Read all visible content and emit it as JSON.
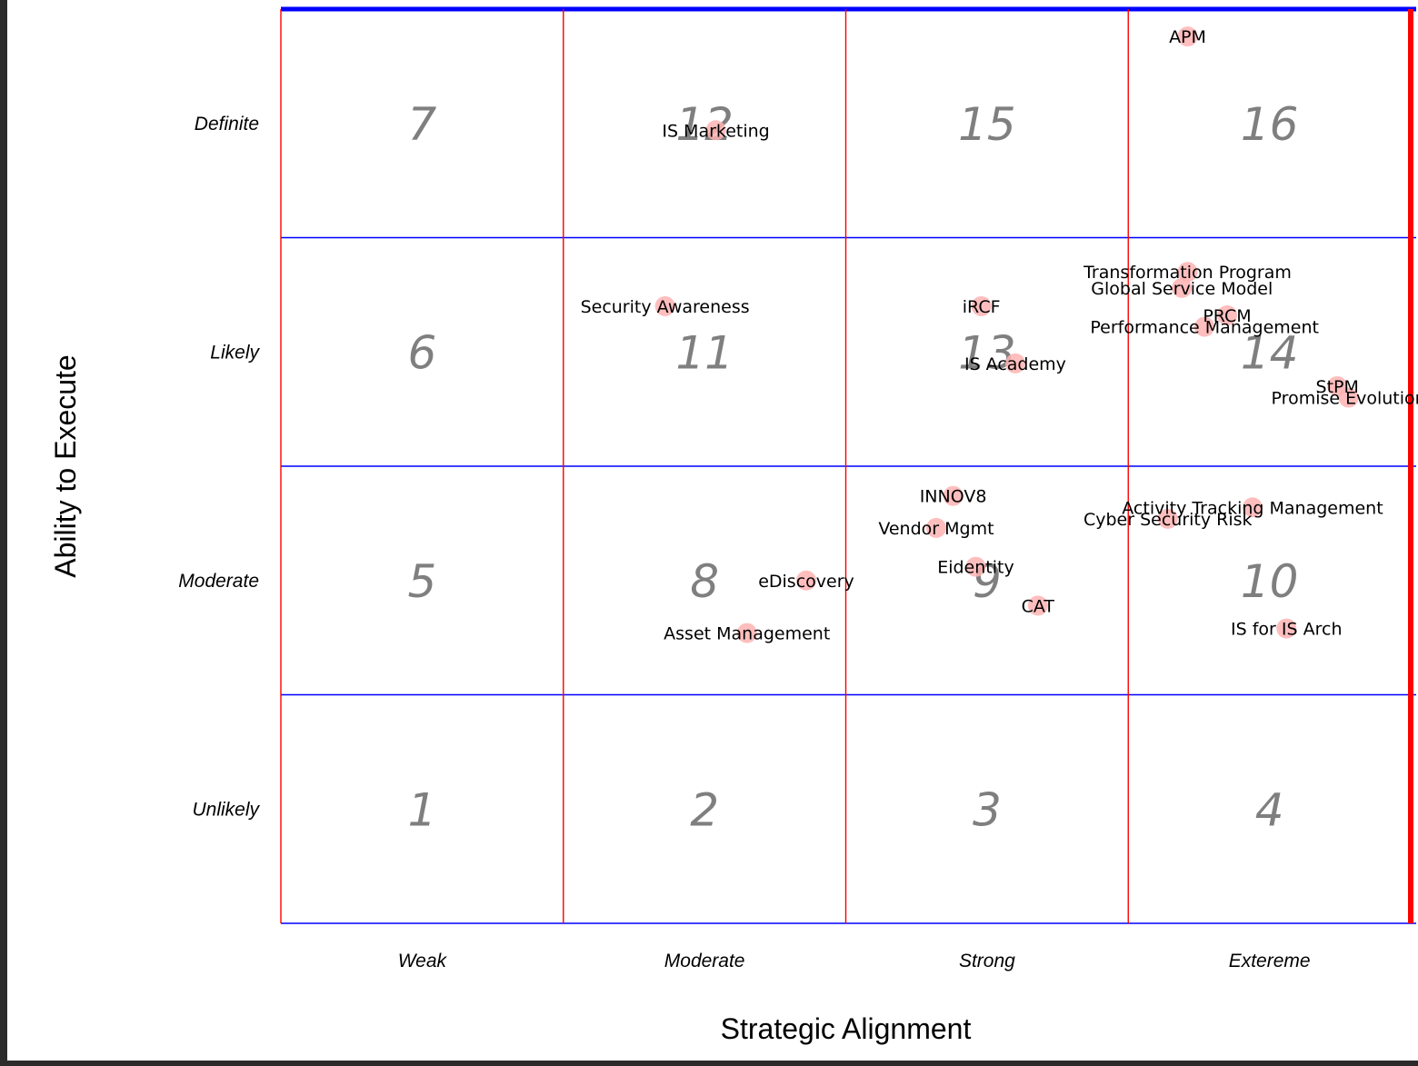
{
  "chart_data": {
    "type": "scatter",
    "title": "",
    "xlabel": "Strategic Alignment",
    "ylabel": "Ability to Execute",
    "xlim": [
      0,
      4
    ],
    "ylim": [
      0,
      4
    ],
    "x_categories": [
      "Weak",
      "Moderate",
      "Strong",
      "Extereme"
    ],
    "y_categories": [
      "Unlikely",
      "Moderate",
      "Likely",
      "Definite"
    ],
    "cells": [
      {
        "number": "1",
        "col": 0,
        "row": 0
      },
      {
        "number": "2",
        "col": 1,
        "row": 0
      },
      {
        "number": "3",
        "col": 2,
        "row": 0
      },
      {
        "number": "4",
        "col": 3,
        "row": 0
      },
      {
        "number": "5",
        "col": 0,
        "row": 1
      },
      {
        "number": "8",
        "col": 1,
        "row": 1
      },
      {
        "number": "9",
        "col": 2,
        "row": 1
      },
      {
        "number": "10",
        "col": 3,
        "row": 1
      },
      {
        "number": "6",
        "col": 0,
        "row": 2
      },
      {
        "number": "11",
        "col": 1,
        "row": 2
      },
      {
        "number": "13",
        "col": 2,
        "row": 2
      },
      {
        "number": "14",
        "col": 3,
        "row": 2
      },
      {
        "number": "7",
        "col": 0,
        "row": 3
      },
      {
        "number": "12",
        "col": 1,
        "row": 3
      },
      {
        "number": "15",
        "col": 2,
        "row": 3
      },
      {
        "number": "16",
        "col": 3,
        "row": 3
      }
    ],
    "points": [
      {
        "label": "APM",
        "x": 3.21,
        "y": 3.88
      },
      {
        "label": "IS Marketing",
        "x": 1.54,
        "y": 3.47
      },
      {
        "label": "Transformation Program",
        "x": 3.21,
        "y": 2.85
      },
      {
        "label": "Global Service Model",
        "x": 3.19,
        "y": 2.78
      },
      {
        "label": "PRCM",
        "x": 3.35,
        "y": 2.66
      },
      {
        "label": "Performance Management",
        "x": 3.27,
        "y": 2.61
      },
      {
        "label": "Security Awareness",
        "x": 1.36,
        "y": 2.7
      },
      {
        "label": "iRCF",
        "x": 2.48,
        "y": 2.7
      },
      {
        "label": "IS Academy",
        "x": 2.6,
        "y": 2.45
      },
      {
        "label": "StPM",
        "x": 3.74,
        "y": 2.35
      },
      {
        "label": "Promise Evolution",
        "x": 3.78,
        "y": 2.3
      },
      {
        "label": "INNOV8",
        "x": 2.38,
        "y": 1.87
      },
      {
        "label": "Vendor Mgmt",
        "x": 2.32,
        "y": 1.73
      },
      {
        "label": "Activity Tracking Management",
        "x": 3.44,
        "y": 1.82
      },
      {
        "label": "Cyber Security Risk",
        "x": 3.14,
        "y": 1.77
      },
      {
        "label": "Eidentity",
        "x": 2.46,
        "y": 1.56
      },
      {
        "label": "eDiscovery",
        "x": 1.86,
        "y": 1.5
      },
      {
        "label": "CAT",
        "x": 2.68,
        "y": 1.39
      },
      {
        "label": "IS for IS Arch",
        "x": 3.56,
        "y": 1.29
      },
      {
        "label": "Asset Management",
        "x": 1.65,
        "y": 1.27
      }
    ],
    "grid": true,
    "colors": {
      "vertical_grid": "#ff0000",
      "horizontal_grid": "#0000ff",
      "point_fill": "#ffb3b3",
      "cell_number": "#7f7f7f"
    }
  }
}
